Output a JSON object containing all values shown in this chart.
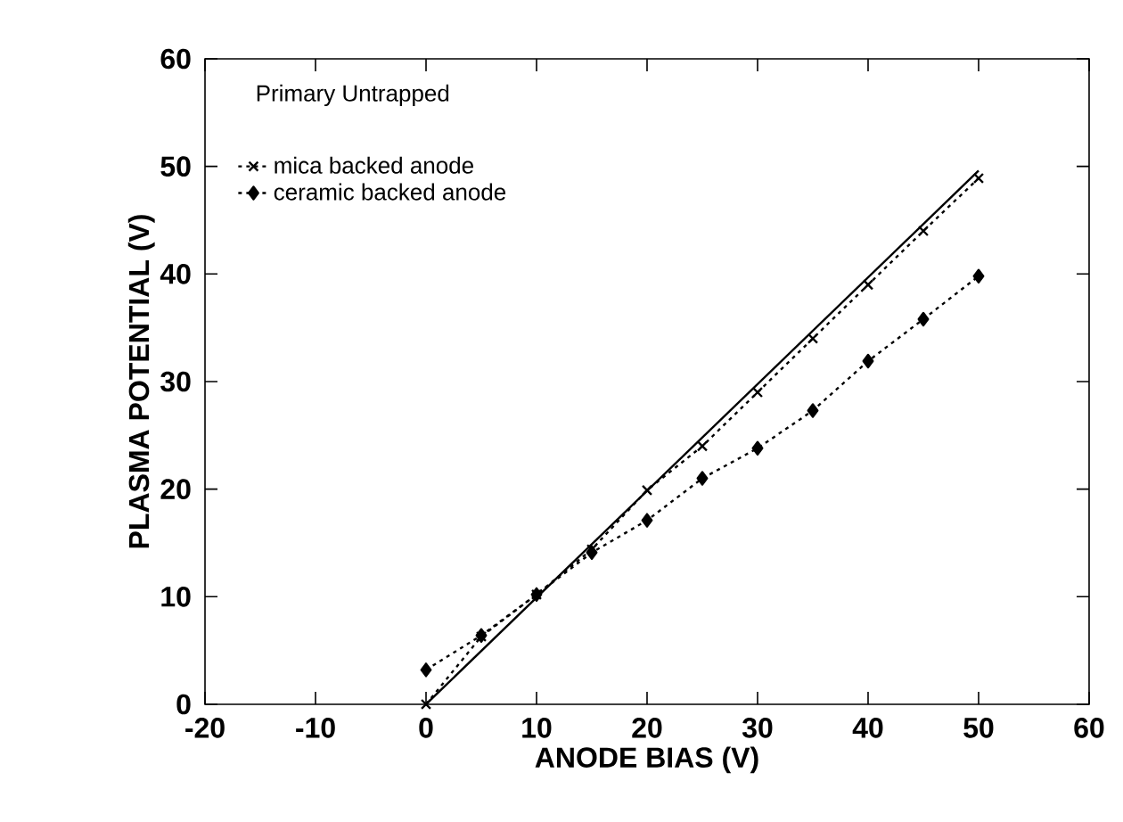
{
  "chart_data": {
    "type": "line",
    "xlabel": "ANODE BIAS (V)",
    "ylabel": "PLASMA POTENTIAL (V)",
    "annotations": [
      "Primary Untrapped"
    ],
    "x": [
      0,
      5,
      10,
      15,
      20,
      25,
      30,
      35,
      40,
      45,
      50
    ],
    "series": [
      {
        "name": "mica backed anode",
        "color": "#000000",
        "marker": "cross",
        "line_style": "dotted",
        "values": [
          0,
          6.3,
          10.2,
          14.4,
          19.9,
          24,
          29,
          34,
          39,
          44,
          48.9
        ]
      },
      {
        "name": "ceramic backed anode",
        "color": "#000000",
        "marker": "diamond",
        "line_style": "dotted",
        "values": [
          3.2,
          6.4,
          10.2,
          14.1,
          17.1,
          21,
          23.8,
          27.3,
          31.9,
          35.8,
          39.8
        ]
      },
      {
        "color": "#000000",
        "marker": "none",
        "line_style": "solid",
        "x": [
          0,
          50
        ],
        "values": [
          0,
          49.6
        ]
      }
    ],
    "xlim": [
      -20,
      60
    ],
    "ylim": [
      0,
      60
    ],
    "xticks": [
      -20,
      -10,
      0,
      10,
      20,
      30,
      40,
      50,
      60
    ],
    "yticks": [
      0,
      10,
      20,
      30,
      40,
      50,
      60
    ],
    "legend": "top left",
    "grid": false
  }
}
